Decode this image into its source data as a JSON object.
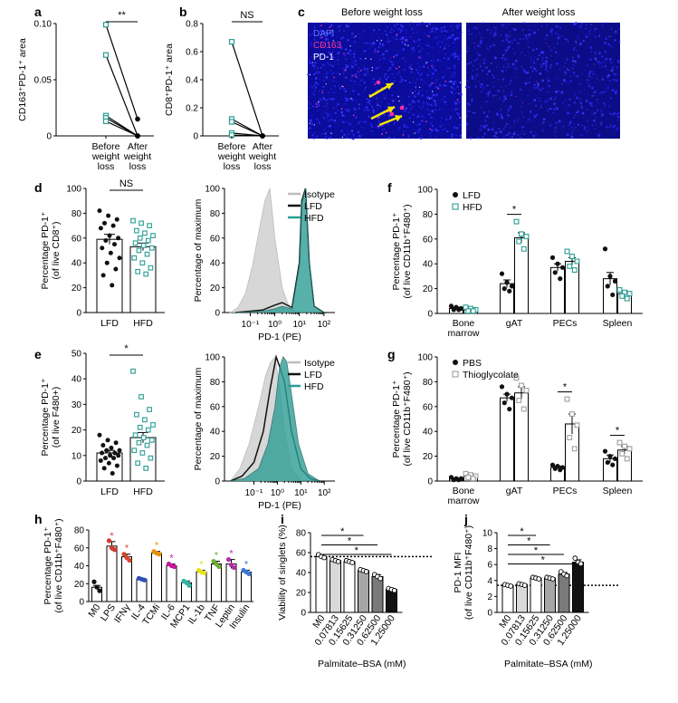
{
  "colors": {
    "lfd": "#111111",
    "hfd": "#2a9d94",
    "hfd_fill": "#2e9e96",
    "isotype": "#bdbdbd",
    "pbs": "#111111",
    "thioglycolate": "#9e9e9e",
    "dapi": "#1a1acd",
    "cd163": "#e0157f",
    "pd1": "#ffffff",
    "arrow": "#f2e600",
    "lps_red": "#d33a2c",
    "tcmi_orange": "#e8900a",
    "il6_magenta": "#c8159c",
    "mcp1_teal": "#2cb7a5",
    "il1b_yellow": "#e6e21c",
    "tnf_green": "#6fae34",
    "leptin_purple": "#b02ea8",
    "insulin_blue": "#3a76d0",
    "ifng_red": "#d8462a",
    "il4_blue": "#2b50b8"
  },
  "panel_labels": {
    "a": "a",
    "b": "b",
    "c": "c",
    "d": "d",
    "e": "e",
    "f": "f",
    "g": "g",
    "h": "h",
    "i": "i",
    "j": "j"
  },
  "chart_data": [
    {
      "id": "a",
      "type": "scatter",
      "ylabel": "CD163⁺PD-1⁺ area",
      "categories": [
        "Before weight loss",
        "After weight loss"
      ],
      "ylim": [
        0,
        0.1
      ],
      "yticks": [
        "0",
        "0.05",
        "0.10"
      ],
      "pairs": [
        [
          0.099,
          0.015
        ],
        [
          0.072,
          0.0
        ],
        [
          0.018,
          0.0
        ],
        [
          0.016,
          0.0
        ],
        [
          0.013,
          0.0
        ]
      ],
      "significance": "**"
    },
    {
      "id": "b",
      "type": "scatter",
      "ylabel": "CD8⁺PD-1⁺ area",
      "categories": [
        "Before weight loss",
        "After weight loss"
      ],
      "ylim": [
        0,
        0.8
      ],
      "yticks": [
        "0",
        "0.2",
        "0.4",
        "0.6",
        "0.8"
      ],
      "pairs": [
        [
          0.67,
          0.0
        ],
        [
          0.12,
          0.0
        ],
        [
          0.1,
          0.0
        ],
        [
          0.02,
          0.0
        ],
        [
          0.005,
          0.0
        ]
      ],
      "significance": "NS"
    },
    {
      "id": "d",
      "type": "bar",
      "ylabel": "Percentage PD-1⁺ (of live CD8⁺)",
      "categories": [
        "LFD",
        "HFD"
      ],
      "values": [
        59,
        53
      ],
      "errors": [
        4,
        3
      ],
      "ylim": [
        0,
        100
      ],
      "yticks": [
        "0",
        "20",
        "40",
        "60",
        "80",
        "100"
      ],
      "points": [
        [
          82,
          78,
          75,
          72,
          70,
          68,
          62,
          60,
          58,
          55,
          52,
          48,
          44,
          40,
          35,
          30,
          22
        ],
        [
          74,
          72,
          70,
          66,
          64,
          62,
          60,
          58,
          56,
          54,
          52,
          50,
          47,
          44,
          40,
          36,
          33,
          31
        ]
      ],
      "significance": "NS"
    },
    {
      "id": "d_hist",
      "type": "area",
      "ylabel": "Percentage of maximum",
      "xlabel": "PD-1  (PE)",
      "xticks": [
        "10⁻¹",
        "10⁰",
        "10¹",
        "10²"
      ],
      "yticks": [
        "0",
        "20",
        "40",
        "60",
        "80",
        "100"
      ],
      "ylim": [
        0,
        100
      ],
      "series": [
        {
          "name": "Isotype",
          "x": [
            -1.8,
            -1.5,
            -1.2,
            -0.9,
            -0.6,
            -0.4,
            -0.2,
            0.0,
            0.3,
            0.6,
            1.0
          ],
          "values": [
            0,
            4,
            15,
            38,
            70,
            90,
            100,
            60,
            20,
            3,
            0
          ]
        },
        {
          "name": "LFD",
          "x": [
            -1.6,
            -0.5,
            0.0,
            0.3,
            0.7,
            1.0,
            1.1,
            1.25,
            1.4,
            1.6,
            2.0
          ],
          "values": [
            0,
            2,
            6,
            8,
            4,
            40,
            90,
            100,
            40,
            5,
            0
          ]
        },
        {
          "name": "HFD",
          "x": [
            -1.6,
            -0.5,
            0.0,
            0.3,
            0.7,
            1.0,
            1.1,
            1.25,
            1.4,
            1.6,
            2.0
          ],
          "values": [
            0,
            1,
            3,
            5,
            3,
            38,
            88,
            100,
            42,
            5,
            0
          ]
        }
      ]
    },
    {
      "id": "e",
      "type": "bar",
      "ylabel": "Percentage PD-1⁺ (of live F480+)",
      "categories": [
        "LFD",
        "HFD"
      ],
      "values": [
        11,
        17
      ],
      "errors": [
        1,
        2
      ],
      "ylim": [
        0,
        50
      ],
      "yticks": [
        "0",
        "10",
        "20",
        "30",
        "40",
        "50"
      ],
      "points": [
        [
          18,
          16,
          15,
          14,
          13,
          12,
          12,
          11,
          11,
          10,
          10,
          9,
          9,
          8,
          7,
          6,
          5,
          3
        ],
        [
          43,
          33,
          28,
          26,
          24,
          22,
          21,
          20,
          18,
          17,
          16,
          15,
          14,
          12,
          11,
          9,
          7,
          5
        ]
      ],
      "significance": "*"
    },
    {
      "id": "e_hist",
      "type": "area",
      "ylabel": "Percentage of maximum",
      "xlabel": "PD-1  (PE)",
      "xticks": [
        "10⁻¹",
        "10⁰",
        "10¹",
        "10²"
      ],
      "yticks": [
        "0",
        "20",
        "40",
        "60",
        "80",
        "100"
      ],
      "ylim": [
        0,
        100
      ],
      "series": [
        {
          "name": "Isotype",
          "x": [
            -2.0,
            -1.6,
            -1.2,
            -0.8,
            -0.5,
            -0.3,
            -0.1,
            0.1,
            0.3,
            0.6,
            1.0
          ],
          "values": [
            0,
            10,
            30,
            60,
            85,
            95,
            100,
            75,
            40,
            10,
            0
          ]
        },
        {
          "name": "LFD",
          "x": [
            -2.0,
            -1.5,
            -1.0,
            -0.6,
            -0.3,
            -0.05,
            0.1,
            0.3,
            0.6,
            1.0,
            1.4,
            1.8
          ],
          "values": [
            0,
            4,
            15,
            40,
            75,
            100,
            92,
            80,
            40,
            10,
            2,
            0
          ]
        },
        {
          "name": "HFD",
          "x": [
            -2.0,
            -1.4,
            -0.8,
            -0.4,
            -0.1,
            0.1,
            0.25,
            0.4,
            0.6,
            0.9,
            1.3,
            1.8
          ],
          "values": [
            0,
            2,
            10,
            30,
            60,
            92,
            100,
            96,
            70,
            30,
            6,
            0
          ]
        }
      ]
    },
    {
      "id": "f",
      "type": "bar",
      "ylabel": "Percentage PD-1⁺ (of live CD11b⁺F480⁺)",
      "categories": [
        "Bone marrow",
        "gAT",
        "PECs",
        "Spleen"
      ],
      "ylim": [
        0,
        100
      ],
      "yticks": [
        "0",
        "20",
        "40",
        "60",
        "80",
        "100"
      ],
      "series": [
        {
          "name": "LFD",
          "values": [
            4,
            24,
            37,
            28
          ],
          "errors": [
            1,
            3,
            3,
            5
          ],
          "points": [
            [
              6,
              5,
              4,
              3,
              3
            ],
            [
              32,
              25,
              22,
              20,
              18
            ],
            [
              45,
              40,
              37,
              33,
              28
            ],
            [
              52,
              30,
              26,
              22,
              15
            ]
          ]
        },
        {
          "name": "HFD",
          "values": [
            3,
            61,
            42,
            16
          ],
          "errors": [
            1,
            4,
            3,
            2
          ],
          "points": [
            [
              5,
              4,
              3,
              2,
              2
            ],
            [
              74,
              64,
              62,
              58,
              52
            ],
            [
              50,
              46,
              42,
              38,
              35
            ],
            [
              19,
              17,
              16,
              14,
              12
            ]
          ]
        }
      ],
      "significance": [
        {
          "category": 1,
          "label": "*"
        }
      ]
    },
    {
      "id": "g",
      "type": "bar",
      "ylabel": "Percentage PD-1⁺ (of live CD11b⁺F480⁺)",
      "categories": [
        "Bone marrow",
        "gAT",
        "PECs",
        "Spleen"
      ],
      "ylim": [
        0,
        100
      ],
      "yticks": [
        "0",
        "20",
        "40",
        "60",
        "80",
        "100"
      ],
      "series": [
        {
          "name": "PBS",
          "values": [
            2,
            67,
            11,
            18
          ],
          "errors": [
            0.5,
            3,
            1,
            3
          ],
          "points": [
            [
              3,
              2,
              2,
              1,
              1
            ],
            [
              76,
              70,
              67,
              63,
              58
            ],
            [
              13,
              12,
              11,
              10,
              9
            ],
            [
              24,
              20,
              18,
              15,
              13
            ]
          ]
        },
        {
          "name": "Thioglycolate",
          "values": [
            4,
            71,
            46,
            25
          ],
          "errors": [
            1,
            5,
            8,
            3
          ],
          "points": [
            [
              6,
              5,
              4,
              3,
              2
            ],
            [
              83,
              77,
              73,
              65,
              58
            ],
            [
              66,
              54,
              45,
              35,
              26
            ],
            [
              31,
              28,
              26,
              22,
              18
            ]
          ]
        }
      ],
      "significance": [
        {
          "category": 2,
          "label": "*"
        },
        {
          "category": 3,
          "label": "*"
        }
      ]
    },
    {
      "id": "h",
      "type": "bar",
      "ylabel": "Percentage PD-1⁺ (of live CD11b⁺F480⁺)",
      "categories": [
        "M0",
        "LPS",
        "IFNγ",
        "IL-4",
        "TCMi",
        "IL-6",
        "MCP1",
        "IL-1b",
        "TNF",
        "Leptin",
        "Insulin"
      ],
      "values": [
        16,
        62,
        50,
        25,
        54,
        40,
        21,
        33,
        42,
        42,
        33
      ],
      "errors": [
        2,
        5,
        3,
        1,
        2,
        2,
        2,
        2,
        3,
        5,
        2
      ],
      "ylim": [
        0,
        80
      ],
      "yticks": [
        "0",
        "20",
        "40",
        "60",
        "80"
      ],
      "point_colors": [
        "#111111",
        "#d33a2c",
        "#d8462a",
        "#2b50b8",
        "#e8900a",
        "#c8159c",
        "#2cb7a5",
        "#e6e21c",
        "#6fae34",
        "#b02ea8",
        "#3a76d0"
      ],
      "points": [
        [
          22,
          16,
          12
        ],
        [
          68,
          60,
          58
        ],
        [
          53,
          49,
          46
        ],
        [
          26,
          25,
          24
        ],
        [
          56,
          54,
          53
        ],
        [
          42,
          40,
          39
        ],
        [
          23,
          21,
          18
        ],
        [
          35,
          33,
          32
        ],
        [
          45,
          42,
          39
        ],
        [
          47,
          41,
          38
        ],
        [
          35,
          33,
          31
        ]
      ],
      "significance_marks": [
        "",
        "*",
        "*",
        "",
        "*",
        "*",
        "",
        "*",
        "*",
        "*",
        "*"
      ]
    },
    {
      "id": "i",
      "type": "bar",
      "ylabel": "Viability of singlets (%)",
      "xlabel": "Palmitate–BSA (mM)",
      "categories": [
        "M0",
        "0.07813",
        "0.15625",
        "0.31250",
        "0.62500",
        "1.25000"
      ],
      "values": [
        56,
        52,
        51,
        42,
        36,
        23
      ],
      "errors": [
        1,
        1,
        1,
        1,
        2,
        1
      ],
      "ylim": [
        0,
        80
      ],
      "yticks": [
        "0",
        "20",
        "40",
        "60",
        "80"
      ],
      "bar_fills": [
        "#ffffff",
        "#d9d9d9",
        "#ffffff",
        "#a6a6a6",
        "#7a7a7a",
        "#111111"
      ],
      "points": [
        [
          58,
          56,
          55
        ],
        [
          53,
          52,
          51
        ],
        [
          52,
          51,
          50
        ],
        [
          43,
          42,
          41
        ],
        [
          38,
          36,
          34
        ],
        [
          24,
          23,
          22
        ]
      ],
      "reference_line": 56,
      "comparisons": [
        {
          "from": 0,
          "to": 3,
          "label": "*"
        },
        {
          "from": 0,
          "to": 4,
          "label": "*"
        },
        {
          "from": 0,
          "to": 5,
          "label": "*"
        }
      ]
    },
    {
      "id": "j",
      "type": "bar",
      "ylabel": "PD-1 MFI (of live CD11b⁺F480⁺)",
      "xlabel": "Palmitate–BSA (mM)",
      "categories": [
        "M0",
        "0.07813",
        "0.15625",
        "0.31250",
        "0.62500",
        "1.25000"
      ],
      "values": [
        3.4,
        3.5,
        4.3,
        4.3,
        4.8,
        6.3
      ],
      "errors": [
        0.1,
        0.1,
        0.1,
        0.1,
        0.2,
        0.3
      ],
      "ylim": [
        0,
        10
      ],
      "yticks": [
        "0",
        "2",
        "4",
        "6",
        "8",
        "10"
      ],
      "bar_fills": [
        "#ffffff",
        "#d9d9d9",
        "#ffffff",
        "#a6a6a6",
        "#7a7a7a",
        "#111111"
      ],
      "points": [
        [
          3.5,
          3.4,
          3.3
        ],
        [
          3.6,
          3.5,
          3.4
        ],
        [
          4.4,
          4.3,
          4.2
        ],
        [
          4.4,
          4.3,
          4.2
        ],
        [
          5.1,
          4.8,
          4.6
        ],
        [
          6.8,
          6.3,
          6.1
        ]
      ],
      "reference_line": 3.4,
      "comparisons": [
        {
          "from": 0,
          "to": 2,
          "label": "*"
        },
        {
          "from": 0,
          "to": 3,
          "label": "*"
        },
        {
          "from": 0,
          "to": 4,
          "label": "*"
        },
        {
          "from": 0,
          "to": 5,
          "label": "*"
        }
      ]
    }
  ],
  "microscopy": {
    "before_title": "Before weight loss",
    "after_title": "After weight loss",
    "legend": [
      "DAPI",
      "CD163",
      "PD-1"
    ]
  }
}
